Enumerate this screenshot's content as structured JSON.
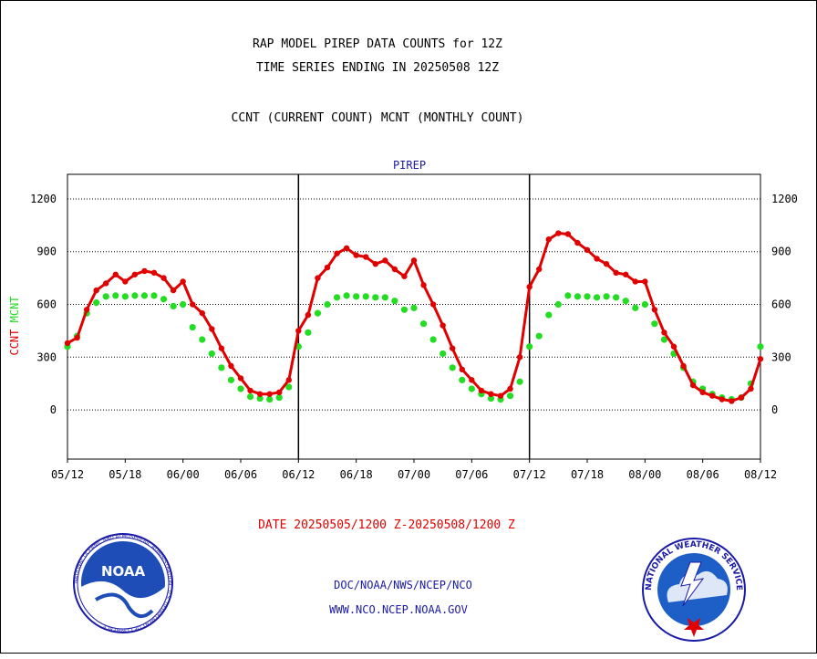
{
  "header": {
    "title_line1": "RAP MODEL PIREP DATA COUNTS for 12Z",
    "title_line2": "TIME SERIES ENDING IN 20250508 12Z",
    "subtitle": "CCNT (CURRENT COUNT) MCNT (MONTHLY COUNT)"
  },
  "footer": {
    "date_range": "DATE 20250505/1200 Z-20250508/1200 Z",
    "org_line": "DOC/NOAA/NWS/NCEP/NCO",
    "url_line": "WWW.NCO.NCEP.NOAA.GOV",
    "noaa_logo_text": "NOAA",
    "noaa_seal_text": "NATIONAL OCEANIC AND ATMOSPHERIC ADMINISTRATION · U.S. DEPARTMENT OF COMMERCE",
    "nws_seal_text": "NATIONAL WEATHER SERVICE"
  },
  "colors": {
    "ccnt": "#e00000",
    "mcnt": "#22dd22",
    "title": "#000000",
    "link_text": "#1a1aa8",
    "date_text": "#e00000"
  },
  "chart_data": {
    "type": "line",
    "title": "PIREP",
    "ylabel_parts": [
      {
        "text": "CCNT",
        "color": "#e00000"
      },
      {
        "text": "MCNT",
        "color": "#22dd22"
      }
    ],
    "ylim": [
      -280,
      1340
    ],
    "yticks": [
      0,
      300,
      600,
      900,
      1200
    ],
    "xlim": [
      0,
      72
    ],
    "xticks": [
      0,
      6,
      12,
      18,
      24,
      30,
      36,
      42,
      48,
      54,
      60,
      66,
      72
    ],
    "xtick_labels": [
      "05/12",
      "05/18",
      "06/00",
      "06/06",
      "06/12",
      "06/18",
      "07/00",
      "07/06",
      "07/12",
      "07/18",
      "08/00",
      "08/06",
      "08/12"
    ],
    "day_separators": [
      24,
      48
    ],
    "grid": true,
    "legend": "none",
    "series": [
      {
        "name": "CCNT",
        "color": "#e00000",
        "x": [
          0,
          1,
          2,
          3,
          4,
          5,
          6,
          7,
          8,
          9,
          10,
          11,
          12,
          13,
          14,
          15,
          16,
          17,
          18,
          19,
          20,
          21,
          22,
          23,
          24,
          25,
          26,
          27,
          28,
          29,
          30,
          31,
          32,
          33,
          34,
          35,
          36,
          37,
          38,
          39,
          40,
          41,
          42,
          43,
          44,
          45,
          46,
          47,
          48,
          49,
          50,
          51,
          52,
          53,
          54,
          55,
          56,
          57,
          58,
          59,
          60,
          61,
          62,
          63,
          64,
          65,
          66,
          67,
          68,
          69,
          70,
          71,
          72
        ],
        "y": [
          380,
          410,
          570,
          680,
          720,
          770,
          730,
          770,
          790,
          780,
          750,
          680,
          730,
          600,
          550,
          460,
          350,
          250,
          180,
          110,
          90,
          90,
          100,
          170,
          450,
          540,
          750,
          810,
          890,
          920,
          880,
          870,
          830,
          850,
          800,
          760,
          850,
          710,
          600,
          480,
          350,
          230,
          170,
          110,
          90,
          80,
          120,
          300,
          700,
          800,
          970,
          1005,
          1000,
          950,
          910,
          860,
          830,
          780,
          770,
          730,
          730,
          570,
          440,
          360,
          250,
          140,
          100,
          80,
          60,
          50,
          70,
          120,
          290
        ]
      },
      {
        "name": "MCNT",
        "color": "#22dd22",
        "x": [
          0,
          1,
          2,
          3,
          4,
          5,
          6,
          7,
          8,
          9,
          10,
          11,
          12,
          13,
          14,
          15,
          16,
          17,
          18,
          19,
          20,
          21,
          22,
          23,
          24,
          25,
          26,
          27,
          28,
          29,
          30,
          31,
          32,
          33,
          34,
          35,
          36,
          37,
          38,
          39,
          40,
          41,
          42,
          43,
          44,
          45,
          46,
          47,
          48,
          49,
          50,
          51,
          52,
          53,
          54,
          55,
          56,
          57,
          58,
          59,
          60,
          61,
          62,
          63,
          64,
          65,
          66,
          67,
          68,
          69,
          70,
          71,
          72
        ],
        "y": [
          360,
          420,
          550,
          610,
          645,
          650,
          645,
          650,
          650,
          650,
          630,
          590,
          600,
          470,
          400,
          320,
          240,
          170,
          120,
          75,
          65,
          60,
          70,
          130,
          360,
          440,
          550,
          600,
          640,
          650,
          645,
          645,
          640,
          640,
          620,
          570,
          580,
          490,
          400,
          320,
          240,
          170,
          120,
          90,
          65,
          60,
          80,
          160,
          360,
          420,
          540,
          600,
          650,
          645,
          645,
          640,
          645,
          640,
          620,
          580,
          600,
          490,
          400,
          320,
          240,
          160,
          120,
          90,
          70,
          60,
          70,
          150,
          360
        ]
      }
    ]
  }
}
